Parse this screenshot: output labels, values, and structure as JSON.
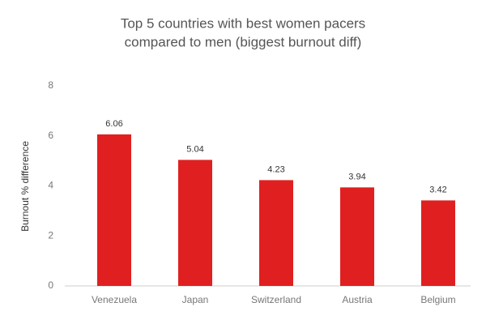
{
  "chart_data": {
    "type": "bar",
    "title": [
      "Top 5 countries with best women pacers",
      "compared to men (biggest burnout diff)"
    ],
    "y_label": "Burnout % difference",
    "categories": [
      "Venezuela",
      "Japan",
      "Switzerland",
      "Austria",
      "Belgium"
    ],
    "values": [
      6.06,
      5.04,
      4.23,
      3.94,
      3.42
    ],
    "color": "#e02020",
    "ylim": [
      0,
      8
    ],
    "yticks": [
      0,
      2,
      4,
      6,
      8
    ],
    "grid": false
  }
}
